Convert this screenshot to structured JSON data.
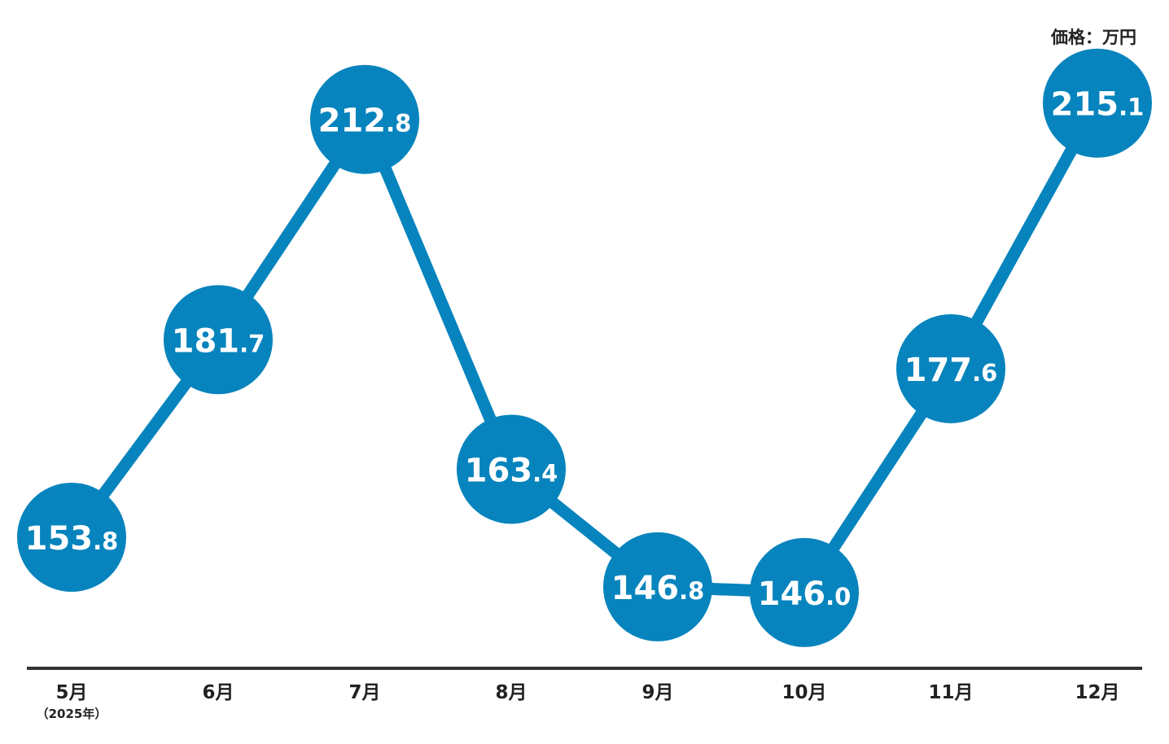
{
  "chart_data": {
    "type": "line",
    "unit_label": "価格：万円",
    "categories": [
      "5月",
      "6月",
      "7月",
      "8月",
      "9月",
      "10月",
      "11月",
      "12月"
    ],
    "first_category_note": "（2025年）",
    "values": [
      153.8,
      181.7,
      212.8,
      163.4,
      146.8,
      146.0,
      177.6,
      215.1
    ],
    "value_labels": [
      {
        "int": "153",
        "dec": ".8"
      },
      {
        "int": "181",
        "dec": ".7"
      },
      {
        "int": "212",
        "dec": ".8"
      },
      {
        "int": "163",
        "dec": ".4"
      },
      {
        "int": "146",
        "dec": ".8"
      },
      {
        "int": "146",
        "dec": ".0"
      },
      {
        "int": "177",
        "dec": ".6"
      },
      {
        "int": "215",
        "dec": ".1"
      }
    ],
    "color": "#0784bd",
    "axis_color": "#333333",
    "grid": false
  }
}
